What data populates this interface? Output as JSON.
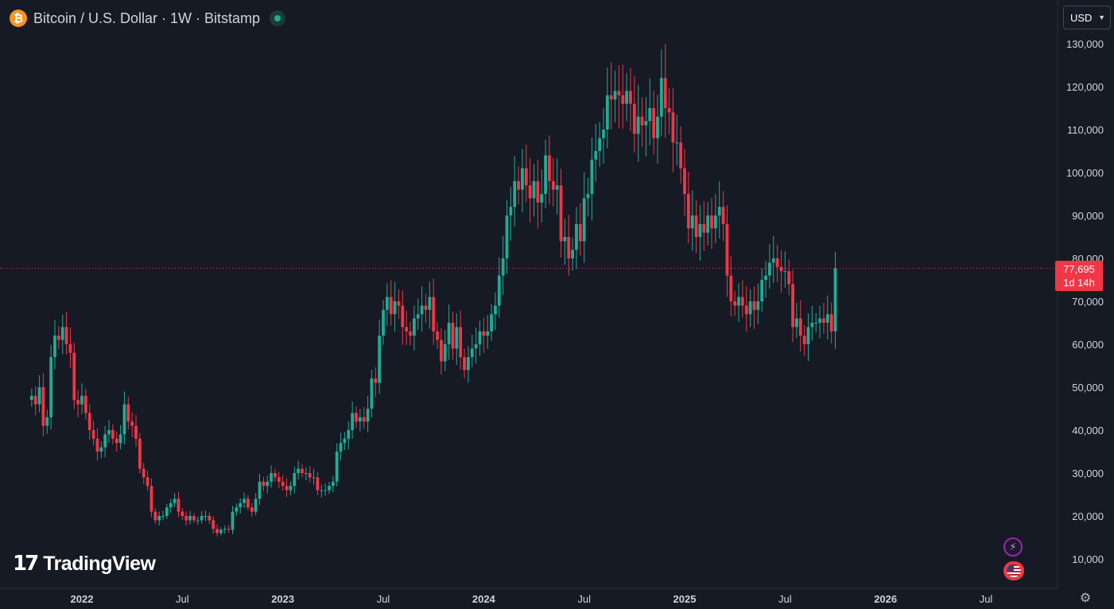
{
  "header": {
    "coin_symbol": "₿",
    "title": "Bitcoin / U.S. Dollar · 1W · Bitstamp"
  },
  "currency": {
    "label": "USD"
  },
  "last_price": {
    "value": "77,695",
    "countdown": "1d 14h"
  },
  "brand": {
    "mark": "17",
    "name": "TradingView"
  },
  "colors": {
    "up": "#22ab94",
    "down": "#f23645",
    "bg": "#161a25",
    "axis_text": "#d1d4dc"
  },
  "icons": {
    "status": "live-dot-icon",
    "settings": "gear-icon",
    "indicator_1": "lightning-icon",
    "indicator_2": "us-flag-icon"
  },
  "chart_data": {
    "type": "candlestick",
    "title": "",
    "y_ticks": [
      10000,
      20000,
      30000,
      40000,
      50000,
      60000,
      70000,
      80000,
      90000,
      100000,
      110000,
      120000,
      130000
    ],
    "y_tick_labels": [
      "10,000",
      "20,000",
      "30,000",
      "40,000",
      "50,000",
      "60,000",
      "70,000",
      "80,000",
      "90,000",
      "100,000",
      "110,000",
      "120,000",
      "130,000"
    ],
    "x_ticks": [
      {
        "label": "2022",
        "week": 0
      },
      {
        "label": "Jul",
        "week": 26
      },
      {
        "label": "2023",
        "week": 52
      },
      {
        "label": "Jul",
        "week": 78
      },
      {
        "label": "2024",
        "week": 104
      },
      {
        "label": "Jul",
        "week": 130
      },
      {
        "label": "2025",
        "week": 156
      },
      {
        "label": "Jul",
        "week": 182
      },
      {
        "label": "2026",
        "week": 208
      },
      {
        "label": "Jul",
        "week": 234
      }
    ],
    "ylim": [
      3000,
      135000
    ],
    "last_price": 77695,
    "weekly_close": [
      48000,
      46000,
      50000,
      41000,
      43000,
      57000,
      62000,
      61000,
      64000,
      60000,
      58000,
      47000,
      46000,
      48000,
      44000,
      40000,
      38000,
      35000,
      36000,
      39000,
      40000,
      38000,
      37000,
      39000,
      46000,
      42000,
      41000,
      38000,
      31000,
      29000,
      27000,
      21000,
      19000,
      20000,
      20000,
      22000,
      23000,
      24000,
      21000,
      20000,
      19000,
      20000,
      19000,
      19000,
      20000,
      20000,
      19000,
      17000,
      16000,
      16800,
      17000,
      16800,
      21000,
      22000,
      23000,
      24000,
      22000,
      21000,
      24000,
      28000,
      27000,
      28000,
      30000,
      29000,
      28000,
      27000,
      26000,
      27000,
      30000,
      31000,
      30000,
      30000,
      29000,
      29000,
      26000,
      26000,
      26000,
      27000,
      28000,
      35000,
      37000,
      38000,
      40000,
      44000,
      42000,
      43000,
      42000,
      45000,
      52000,
      51000,
      62000,
      68000,
      71000,
      67000,
      70000,
      69000,
      64000,
      63000,
      62000,
      66000,
      67000,
      69000,
      68000,
      71000,
      63000,
      61000,
      56000,
      60000,
      65000,
      59000,
      64000,
      57000,
      54000,
      57000,
      59000,
      60000,
      63000,
      62000,
      63000,
      67000,
      69000,
      76000,
      80000,
      90000,
      92000,
      98000,
      96000,
      101000,
      97000,
      94000,
      98000,
      93000,
      95000,
      104000,
      98000,
      96000,
      97000,
      84000,
      85000,
      80000,
      82000,
      88000,
      84000,
      94000,
      95000,
      103000,
      105000,
      108000,
      110000,
      118000,
      117000,
      119000,
      118000,
      116000,
      119000,
      116000,
      109000,
      113000,
      111000,
      112000,
      115000,
      108000,
      113000,
      122000,
      115000,
      114000,
      107000,
      107000,
      101000,
      95000,
      87000,
      90000,
      85000,
      88000,
      86000,
      90000,
      87000,
      90000,
      92000,
      88000,
      76000,
      70000,
      69000,
      71000,
      69000,
      67000,
      70000,
      68000,
      70000,
      75000,
      76000,
      79000,
      80000,
      78000,
      77000,
      77000,
      74000,
      64000,
      66000,
      62000,
      60000,
      64000,
      65000,
      65000,
      66000,
      65000,
      67000,
      63000,
      77695
    ]
  }
}
